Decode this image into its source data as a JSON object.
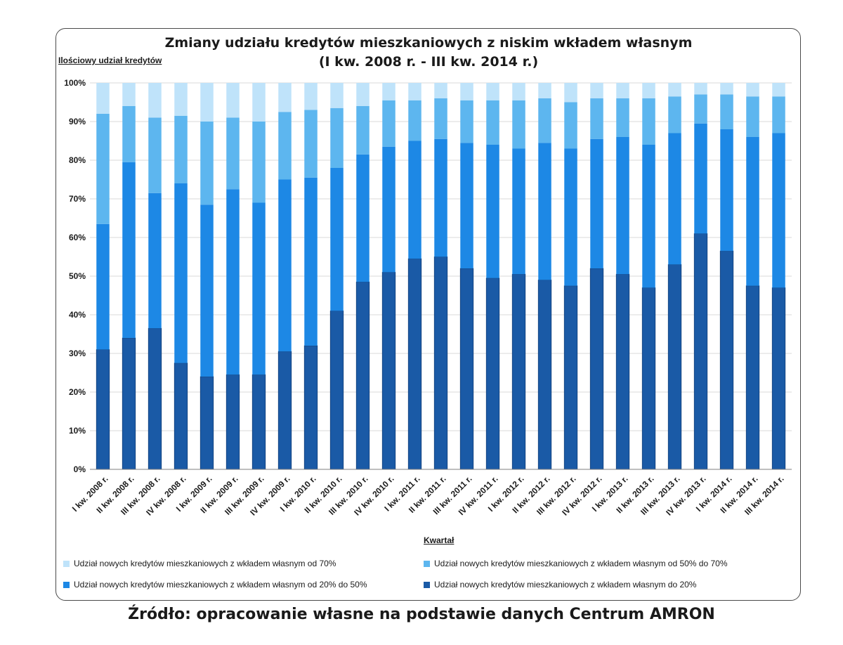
{
  "source_note": "Źródło: opracowanie własne na podstawie danych Centrum AMRON",
  "colors": {
    "s_to20": "#1a5aa6",
    "s_20_50": "#1d88e5",
    "s_50_70": "#5db6ef",
    "s_70": "#bfe3fa",
    "grid": "#d9d9d9",
    "axis": "#7f7f7f"
  },
  "chart_data": {
    "type": "bar",
    "stacked": true,
    "percent": true,
    "title": "Zmiany udziału kredytów mieszkaniowych z niskim wkładem własnym",
    "subtitle": "(I kw. 2008 r. - III kw. 2014 r.)",
    "ylabel": "Ilościowy udział kredytów",
    "xlabel": "Kwartał",
    "ylim": [
      0,
      100
    ],
    "yticks": [
      "0%",
      "10%",
      "20%",
      "30%",
      "40%",
      "50%",
      "60%",
      "70%",
      "80%",
      "90%",
      "100%"
    ],
    "legend_position": "bottom",
    "categories": [
      "I kw. 2008 r.",
      "II kw. 2008 r.",
      "III kw. 2008 r.",
      "IV kw. 2008 r.",
      "I kw. 2009 r.",
      "II kw. 2009 r.",
      "III kw. 2009 r.",
      "IV kw. 2009 r.",
      "I kw. 2010 r.",
      "II kw. 2010 r.",
      "III kw. 2010 r.",
      "IV kw. 2010 r.",
      "I kw. 2011 r.",
      "II kw. 2011 r.",
      "III kw. 2011 r.",
      "IV kw. 2011 r.",
      "I kw. 2012 r.",
      "II kw. 2012 r.",
      "III kw. 2012 r.",
      "IV kw. 2012 r.",
      "I kw. 2013 r.",
      "II kw. 2013 r.",
      "III kw. 2013 r.",
      "IV kw. 2013 r.",
      "I kw. 2014 r.",
      "II kw. 2014 r.",
      "III kw. 2014 r."
    ],
    "series": [
      {
        "name": "Udział nowych kredytów mieszkaniowych z wkładem własnym do 20%",
        "color_key": "s_to20",
        "values": [
          31,
          34,
          36.5,
          27.5,
          24,
          24.5,
          24.5,
          30.5,
          32,
          41,
          48.5,
          51,
          54.5,
          55,
          52,
          49.5,
          50.5,
          49,
          47.5,
          52,
          50.5,
          47,
          53,
          61,
          56.5,
          47.5,
          47
        ]
      },
      {
        "name": "Udział nowych kredytów mieszkaniowych z wkładem własnym od 20% do 50%",
        "color_key": "s_20_50",
        "values": [
          32.5,
          45.5,
          35,
          46.5,
          44.5,
          48,
          44.5,
          44.5,
          43.5,
          37,
          33,
          32.5,
          30.5,
          30.5,
          32.5,
          34.5,
          32.5,
          35.5,
          35.5,
          33.5,
          35.5,
          37,
          34,
          28.5,
          31.5,
          38.5,
          40
        ]
      },
      {
        "name": "Udział nowych kredytów mieszkaniowych z wkładem własnym od 50% do 70%",
        "color_key": "s_50_70",
        "values": [
          28.5,
          14.5,
          19.5,
          17.5,
          21.5,
          18.5,
          21,
          17.5,
          17.5,
          15.5,
          12.5,
          12,
          10.5,
          10.5,
          11,
          11.5,
          12.5,
          11.5,
          12,
          10.5,
          10,
          12,
          9.5,
          7.5,
          9,
          10.5,
          9.5
        ]
      },
      {
        "name": "Udział nowych kredytów mieszkaniowych z wkładem własnym od 70%",
        "color_key": "s_70",
        "values": [
          8,
          6,
          9,
          8.5,
          10,
          9,
          10,
          7.5,
          7,
          6.5,
          6,
          4.5,
          4.5,
          4,
          4.5,
          4.5,
          4.5,
          4,
          5,
          4,
          4,
          4,
          3.5,
          3,
          3,
          3.5,
          3.5
        ]
      }
    ]
  }
}
